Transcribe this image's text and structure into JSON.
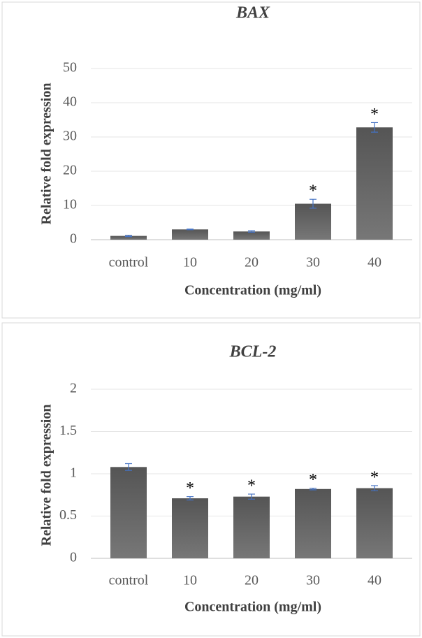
{
  "chart_data": [
    {
      "type": "bar",
      "title": "BAX",
      "x_label": "Concentration (mg/ml)",
      "y_label": "Relative fold expression",
      "categories": [
        "control",
        "10",
        "20",
        "30",
        "40"
      ],
      "values": [
        1.1,
        3.0,
        2.4,
        10.5,
        32.8
      ],
      "errors": [
        0.2,
        0.1,
        0.2,
        1.3,
        1.4
      ],
      "annotations": [
        null,
        null,
        null,
        "*",
        "*"
      ],
      "ylim": [
        0,
        50
      ],
      "yticks": [
        0,
        10,
        20,
        30,
        40,
        50
      ],
      "grid": true,
      "color": "#6b6b6b"
    },
    {
      "type": "bar",
      "title": "BCL-2",
      "x_label": "Concentration (mg/ml)",
      "y_label": "Relative fold expression",
      "categories": [
        "control",
        "10",
        "20",
        "30",
        "40"
      ],
      "values": [
        1.08,
        0.71,
        0.73,
        0.82,
        0.83
      ],
      "errors": [
        0.04,
        0.02,
        0.03,
        0.01,
        0.03
      ],
      "annotations": [
        null,
        "*",
        "*",
        "*",
        "*"
      ],
      "ylim": [
        0,
        2
      ],
      "yticks": [
        0,
        0.5,
        1,
        1.5,
        2
      ],
      "grid": true,
      "color": "#7a7a7a"
    }
  ]
}
